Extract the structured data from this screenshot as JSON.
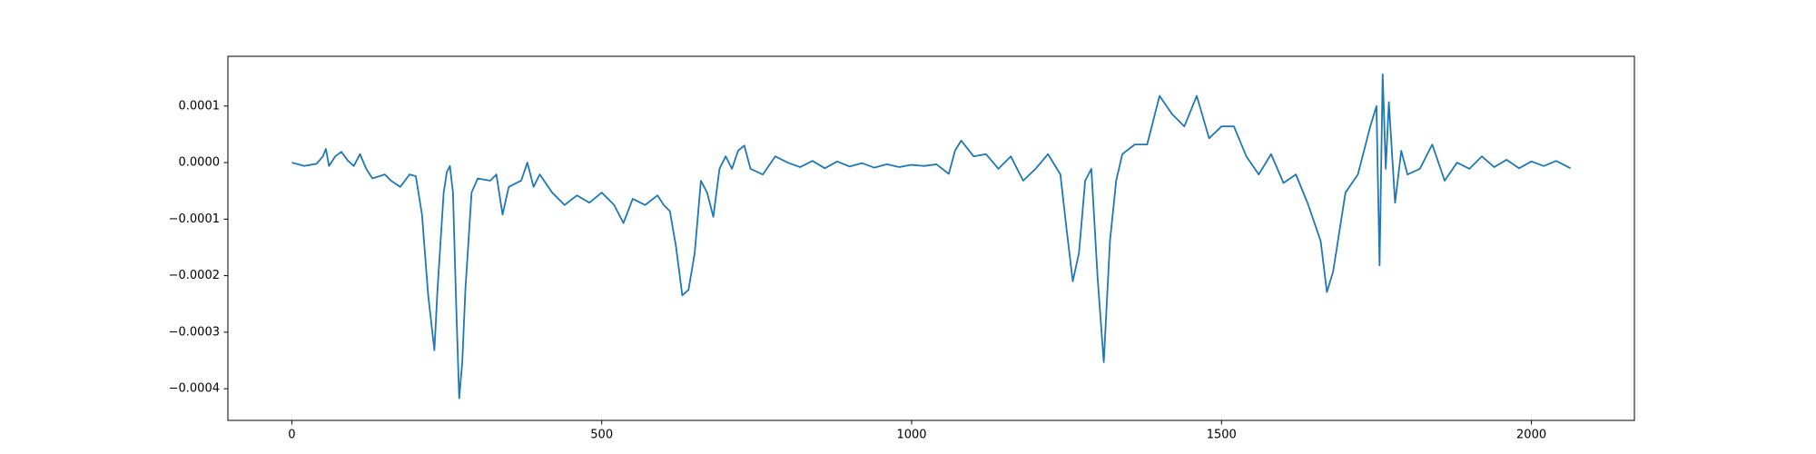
{
  "chart_data": {
    "type": "line",
    "color": "#1f77b4",
    "x": [
      0,
      20,
      40,
      50,
      55,
      60,
      70,
      80,
      90,
      100,
      110,
      120,
      130,
      150,
      160,
      175,
      190,
      200,
      210,
      220,
      230,
      235,
      245,
      250,
      255,
      260,
      265,
      270,
      275,
      280,
      290,
      300,
      320,
      330,
      340,
      350,
      370,
      380,
      390,
      400,
      420,
      440,
      460,
      480,
      500,
      520,
      535,
      550,
      570,
      590,
      600,
      610,
      620,
      630,
      640,
      650,
      660,
      670,
      680,
      690,
      700,
      710,
      720,
      730,
      740,
      760,
      780,
      800,
      820,
      840,
      860,
      880,
      900,
      920,
      940,
      960,
      980,
      1000,
      1020,
      1040,
      1060,
      1070,
      1080,
      1100,
      1120,
      1140,
      1160,
      1180,
      1200,
      1220,
      1240,
      1250,
      1260,
      1270,
      1280,
      1290,
      1300,
      1310,
      1320,
      1330,
      1340,
      1360,
      1380,
      1400,
      1420,
      1440,
      1460,
      1480,
      1500,
      1520,
      1540,
      1560,
      1580,
      1600,
      1620,
      1640,
      1660,
      1670,
      1680,
      1700,
      1720,
      1740,
      1750,
      1755,
      1760,
      1765,
      1770,
      1780,
      1790,
      1800,
      1820,
      1840,
      1860,
      1880,
      1900,
      1920,
      1940,
      1960,
      1980,
      2000,
      2020,
      2040,
      2063
    ],
    "values": [
      0,
      -6e-06,
      -2e-06,
      1.1e-05,
      2.4e-05,
      -6e-06,
      1.1e-05,
      1.9e-05,
      4e-06,
      -6e-06,
      1.5e-05,
      -1.1e-05,
      -2.8e-05,
      -2.1e-05,
      -3.2e-05,
      -4.3e-05,
      -2.1e-05,
      -2.4e-05,
      -9.2e-05,
      -0.000235,
      -0.000332,
      -0.000225,
      -5.3e-05,
      -1.7e-05,
      -6e-06,
      -5.3e-05,
      -0.000246,
      -0.000417,
      -0.000353,
      -0.000225,
      -5.3e-05,
      -2.8e-05,
      -3.2e-05,
      -2.1e-05,
      -9.2e-05,
      -4.3e-05,
      -3.2e-05,
      0,
      -4.3e-05,
      -2.1e-05,
      -5.3e-05,
      -7.5e-05,
      -5.8e-05,
      -7.1e-05,
      -5.3e-05,
      -7.5e-05,
      -0.000107,
      -6.4e-05,
      -7.5e-05,
      -5.8e-05,
      -7.5e-05,
      -8.6e-05,
      -0.00015,
      -0.000235,
      -0.000225,
      -0.00016,
      -3.2e-05,
      -5.3e-05,
      -9.6e-05,
      -1.1e-05,
      1.1e-05,
      -1.1e-05,
      2.1e-05,
      3e-05,
      -1.1e-05,
      -2.1e-05,
      1.1e-05,
      0,
      -8e-06,
      3e-06,
      -1e-05,
      2e-06,
      -7e-06,
      -1e-06,
      -9e-06,
      -3e-06,
      -8e-06,
      -4e-06,
      -6e-06,
      -3e-06,
      -2e-05,
      2.1e-05,
      3.9e-05,
      1.1e-05,
      1.5e-05,
      -1.1e-05,
      1.1e-05,
      -3.2e-05,
      -1.1e-05,
      1.5e-05,
      -2.1e-05,
      -0.000118,
      -0.00021,
      -0.00016,
      -3.2e-05,
      -1.1e-05,
      -0.000203,
      -0.000353,
      -0.000139,
      -3.2e-05,
      1.5e-05,
      3.2e-05,
      3.2e-05,
      0.000118,
      8.6e-05,
      6.4e-05,
      0.000118,
      4.3e-05,
      6.4e-05,
      6.4e-05,
      1.1e-05,
      -2.1e-05,
      1.5e-05,
      -3.6e-05,
      -2.1e-05,
      -7.5e-05,
      -0.000139,
      -0.000229,
      -0.000193,
      -5.3e-05,
      -2.1e-05,
      6.4e-05,
      0.0001,
      -0.000182,
      0.000156,
      -1.1e-05,
      0.000107,
      -7.1e-05,
      2.1e-05,
      -2.1e-05,
      -1.1e-05,
      3.2e-05,
      -3.2e-05,
      0,
      -1.1e-05,
      1.1e-05,
      -8e-06,
      5e-06,
      -1e-05,
      2e-06,
      -6e-06,
      3e-06,
      -1e-05
    ],
    "xlim": [
      -103.15,
      2166.15
    ],
    "ylim": [
      -0.000456,
      0.000188
    ],
    "xticks": [
      0,
      500,
      1000,
      1500,
      2000
    ],
    "yticks": [
      {
        "value": -0.0004,
        "label": "−0.0004"
      },
      {
        "value": -0.0003,
        "label": "−0.0003"
      },
      {
        "value": -0.0002,
        "label": "−0.0002"
      },
      {
        "value": -0.0001,
        "label": "−0.0001"
      },
      {
        "value": 0,
        "label": "0.0000"
      },
      {
        "value": 0.0001,
        "label": "0.0001"
      }
    ]
  }
}
